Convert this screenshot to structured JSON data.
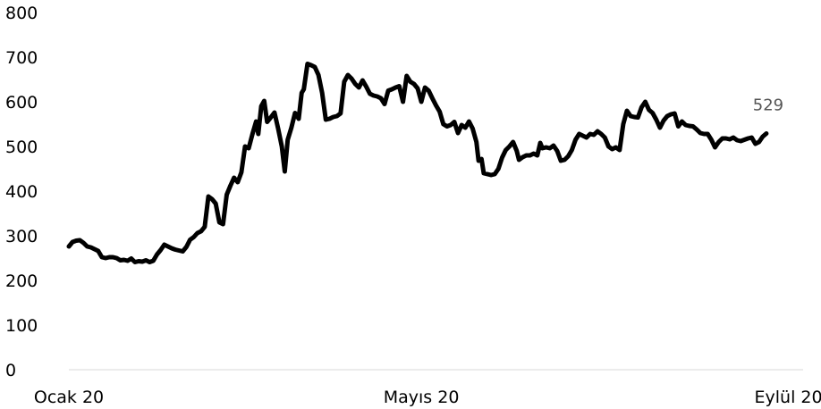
{
  "chart_data": {
    "type": "line",
    "title": "",
    "xlabel": "",
    "ylabel": "",
    "ylim": [
      0,
      800
    ],
    "y_ticks": [
      "0",
      "100",
      "200",
      "300",
      "400",
      "500",
      "600",
      "700",
      "800"
    ],
    "x_ticks": [
      {
        "x": 0,
        "label": "Ocak 20"
      },
      {
        "x": 0.48,
        "label": "Mayıs 20"
      },
      {
        "x": 0.98,
        "label": "Eylül 20"
      }
    ],
    "end_label": "529",
    "grid": false,
    "line_color": "#000000",
    "series": [
      {
        "values": [
          [
            0.0,
            276
          ],
          [
            0.005,
            286
          ],
          [
            0.01,
            289
          ],
          [
            0.015,
            290
          ],
          [
            0.02,
            284
          ],
          [
            0.025,
            276
          ],
          [
            0.03,
            274
          ],
          [
            0.035,
            270
          ],
          [
            0.04,
            266
          ],
          [
            0.045,
            252
          ],
          [
            0.05,
            250
          ],
          [
            0.055,
            252
          ],
          [
            0.06,
            252
          ],
          [
            0.065,
            250
          ],
          [
            0.07,
            245
          ],
          [
            0.075,
            246
          ],
          [
            0.08,
            244
          ],
          [
            0.085,
            249
          ],
          [
            0.09,
            241
          ],
          [
            0.095,
            243
          ],
          [
            0.1,
            242
          ],
          [
            0.105,
            245
          ],
          [
            0.11,
            241
          ],
          [
            0.115,
            244
          ],
          [
            0.12,
            258
          ],
          [
            0.125,
            268
          ],
          [
            0.13,
            280
          ],
          [
            0.135,
            276
          ],
          [
            0.14,
            272
          ],
          [
            0.145,
            269
          ],
          [
            0.15,
            267
          ],
          [
            0.155,
            265
          ],
          [
            0.16,
            275
          ],
          [
            0.165,
            291
          ],
          [
            0.17,
            297
          ],
          [
            0.175,
            306
          ],
          [
            0.18,
            310
          ],
          [
            0.185,
            320
          ],
          [
            0.19,
            388
          ],
          [
            0.195,
            382
          ],
          [
            0.2,
            372
          ],
          [
            0.205,
            330
          ],
          [
            0.21,
            326
          ],
          [
            0.215,
            392
          ],
          [
            0.22,
            412
          ],
          [
            0.225,
            430
          ],
          [
            0.23,
            420
          ],
          [
            0.235,
            442
          ],
          [
            0.24,
            500
          ],
          [
            0.245,
            496
          ],
          [
            0.25,
            528
          ],
          [
            0.255,
            556
          ],
          [
            0.258,
            528
          ],
          [
            0.262,
            590
          ],
          [
            0.266,
            602
          ],
          [
            0.27,
            555
          ],
          [
            0.275,
            565
          ],
          [
            0.28,
            576
          ],
          [
            0.285,
            540
          ],
          [
            0.29,
            500
          ],
          [
            0.294,
            444
          ],
          [
            0.298,
            515
          ],
          [
            0.303,
            542
          ],
          [
            0.308,
            575
          ],
          [
            0.313,
            562
          ],
          [
            0.317,
            620
          ],
          [
            0.32,
            628
          ],
          [
            0.325,
            685
          ],
          [
            0.33,
            682
          ],
          [
            0.335,
            678
          ],
          [
            0.34,
            660
          ],
          [
            0.345,
            620
          ],
          [
            0.35,
            560
          ],
          [
            0.355,
            562
          ],
          [
            0.36,
            566
          ],
          [
            0.365,
            568
          ],
          [
            0.37,
            574
          ],
          [
            0.375,
            645
          ],
          [
            0.38,
            660
          ],
          [
            0.385,
            652
          ],
          [
            0.39,
            640
          ],
          [
            0.395,
            632
          ],
          [
            0.4,
            648
          ],
          [
            0.405,
            634
          ],
          [
            0.41,
            618
          ],
          [
            0.415,
            614
          ],
          [
            0.42,
            612
          ],
          [
            0.425,
            608
          ],
          [
            0.43,
            595
          ],
          [
            0.435,
            625
          ],
          [
            0.44,
            628
          ],
          [
            0.445,
            632
          ],
          [
            0.45,
            635
          ],
          [
            0.455,
            600
          ],
          [
            0.46,
            658
          ],
          [
            0.465,
            645
          ],
          [
            0.47,
            640
          ],
          [
            0.475,
            630
          ],
          [
            0.48,
            600
          ],
          [
            0.485,
            632
          ],
          [
            0.49,
            625
          ],
          [
            0.495,
            608
          ],
          [
            0.5,
            592
          ],
          [
            0.505,
            578
          ],
          [
            0.51,
            550
          ],
          [
            0.515,
            545
          ],
          [
            0.52,
            548
          ],
          [
            0.525,
            555
          ],
          [
            0.53,
            530
          ],
          [
            0.535,
            548
          ],
          [
            0.54,
            542
          ],
          [
            0.545,
            556
          ],
          [
            0.55,
            540
          ],
          [
            0.555,
            510
          ],
          [
            0.558,
            468
          ],
          [
            0.562,
            472
          ],
          [
            0.565,
            440
          ],
          [
            0.57,
            438
          ],
          [
            0.575,
            436
          ],
          [
            0.58,
            438
          ],
          [
            0.585,
            450
          ],
          [
            0.59,
            475
          ],
          [
            0.595,
            492
          ],
          [
            0.6,
            500
          ],
          [
            0.605,
            510
          ],
          [
            0.61,
            490
          ],
          [
            0.613,
            470
          ],
          [
            0.618,
            476
          ],
          [
            0.623,
            480
          ],
          [
            0.628,
            480
          ],
          [
            0.633,
            484
          ],
          [
            0.638,
            480
          ],
          [
            0.642,
            508
          ],
          [
            0.645,
            496
          ],
          [
            0.65,
            498
          ],
          [
            0.655,
            496
          ],
          [
            0.66,
            502
          ],
          [
            0.665,
            490
          ],
          [
            0.67,
            468
          ],
          [
            0.675,
            470
          ],
          [
            0.68,
            478
          ],
          [
            0.685,
            492
          ],
          [
            0.69,
            515
          ],
          [
            0.695,
            528
          ],
          [
            0.7,
            524
          ],
          [
            0.705,
            520
          ],
          [
            0.71,
            528
          ],
          [
            0.715,
            526
          ],
          [
            0.72,
            534
          ],
          [
            0.725,
            528
          ],
          [
            0.73,
            520
          ],
          [
            0.735,
            500
          ],
          [
            0.74,
            494
          ],
          [
            0.745,
            498
          ],
          [
            0.75,
            492
          ],
          [
            0.755,
            550
          ],
          [
            0.76,
            580
          ],
          [
            0.765,
            568
          ],
          [
            0.77,
            566
          ],
          [
            0.775,
            565
          ],
          [
            0.78,
            588
          ],
          [
            0.785,
            600
          ],
          [
            0.79,
            582
          ],
          [
            0.795,
            575
          ],
          [
            0.8,
            560
          ],
          [
            0.805,
            542
          ],
          [
            0.81,
            558
          ],
          [
            0.815,
            568
          ],
          [
            0.82,
            572
          ],
          [
            0.825,
            574
          ],
          [
            0.83,
            545
          ],
          [
            0.835,
            556
          ],
          [
            0.84,
            548
          ],
          [
            0.845,
            546
          ],
          [
            0.85,
            545
          ],
          [
            0.855,
            538
          ],
          [
            0.86,
            530
          ],
          [
            0.865,
            528
          ],
          [
            0.87,
            528
          ],
          [
            0.875,
            515
          ],
          [
            0.88,
            498
          ],
          [
            0.885,
            510
          ],
          [
            0.89,
            518
          ],
          [
            0.895,
            518
          ],
          [
            0.9,
            516
          ],
          [
            0.905,
            520
          ],
          [
            0.91,
            514
          ],
          [
            0.915,
            512
          ],
          [
            0.92,
            515
          ],
          [
            0.925,
            518
          ],
          [
            0.93,
            520
          ],
          [
            0.935,
            506
          ],
          [
            0.94,
            510
          ],
          [
            0.945,
            522
          ],
          [
            0.95,
            529
          ]
        ]
      }
    ]
  }
}
